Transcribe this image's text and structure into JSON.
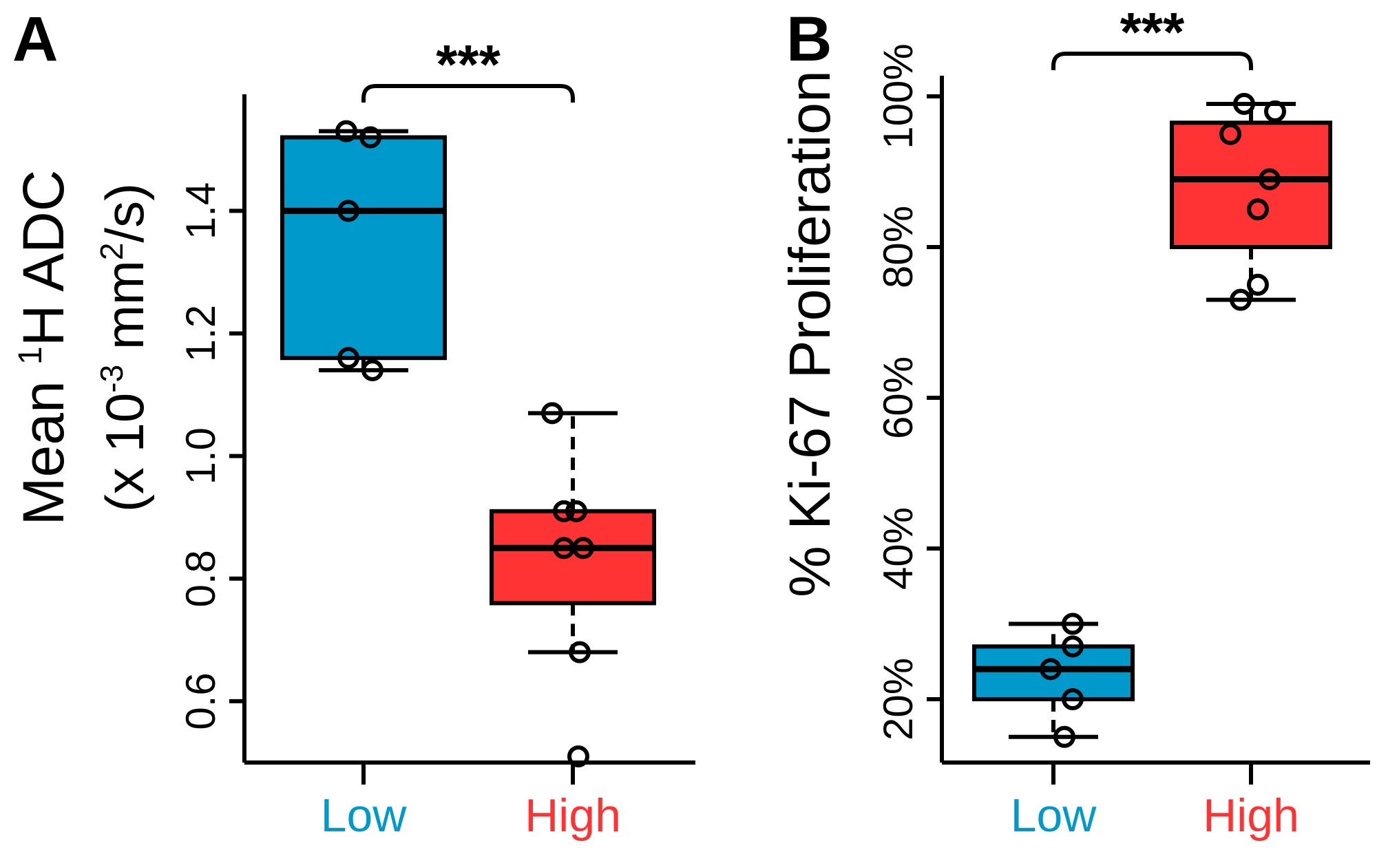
{
  "colors": {
    "low": "#0099cc",
    "high": "#ff3333",
    "ink": "#000000"
  },
  "chart_data": [
    {
      "type": "box",
      "panel_label": "A",
      "ylabel_line1_prefix": "Mean ",
      "ylabel_line1_sup": "1",
      "ylabel_line1_suffix": "H ADC",
      "ylabel_line2_a": "(x 10",
      "ylabel_line2_sup1": "-3",
      "ylabel_line2_b": " mm",
      "ylabel_line2_sup2": "2",
      "ylabel_line2_c": "/s)",
      "ylim": [
        0.5,
        1.57
      ],
      "yticks": [
        {
          "value": 0.6,
          "label": "0.6"
        },
        {
          "value": 0.8,
          "label": "0.8"
        },
        {
          "value": 1.0,
          "label": "1.0"
        },
        {
          "value": 1.2,
          "label": "1.2"
        },
        {
          "value": 1.4,
          "label": "1.4"
        }
      ],
      "significance": "***",
      "groups": [
        {
          "name": "Low",
          "color": "low",
          "min": 1.14,
          "q1": 1.16,
          "median": 1.4,
          "q3": 1.52,
          "max": 1.53,
          "points": [
            1.53,
            1.52,
            1.4,
            1.16,
            1.14
          ],
          "jitter": [
            -0.25,
            0.1,
            -0.22,
            -0.22,
            0.13
          ],
          "outliers": []
        },
        {
          "name": "High",
          "color": "high",
          "min": 0.68,
          "q1": 0.76,
          "median": 0.85,
          "q3": 0.91,
          "max": 1.07,
          "points": [
            1.07,
            0.91,
            0.91,
            0.85,
            0.85,
            0.68,
            0.51
          ],
          "jitter": [
            -0.3,
            -0.13,
            0.05,
            -0.13,
            0.15,
            0.1,
            0.08
          ],
          "outliers": [
            0.51
          ]
        }
      ]
    },
    {
      "type": "box",
      "panel_label": "B",
      "ylabel": "% Ki-67 Proliferation",
      "ylim": [
        13,
        101
      ],
      "yticks": [
        {
          "value": 20,
          "label": "20%"
        },
        {
          "value": 40,
          "label": "40%"
        },
        {
          "value": 60,
          "label": "60%"
        },
        {
          "value": 80,
          "label": "80%"
        },
        {
          "value": 100,
          "label": "100%"
        }
      ],
      "significance": "***",
      "groups": [
        {
          "name": "Low",
          "color": "low",
          "min": 15,
          "q1": 20,
          "median": 24,
          "q3": 27,
          "max": 30,
          "points": [
            30,
            27,
            24,
            20,
            15
          ],
          "jitter": [
            0.28,
            0.28,
            -0.04,
            0.28,
            0.16
          ],
          "outliers": []
        },
        {
          "name": "High",
          "color": "high",
          "min": 73,
          "q1": 80,
          "median": 89,
          "q3": 96.5,
          "max": 99,
          "points": [
            99,
            98,
            95,
            89,
            85,
            75,
            73
          ],
          "jitter": [
            -0.1,
            0.35,
            -0.3,
            0.27,
            0.1,
            0.1,
            -0.15
          ],
          "outliers": []
        }
      ]
    }
  ]
}
